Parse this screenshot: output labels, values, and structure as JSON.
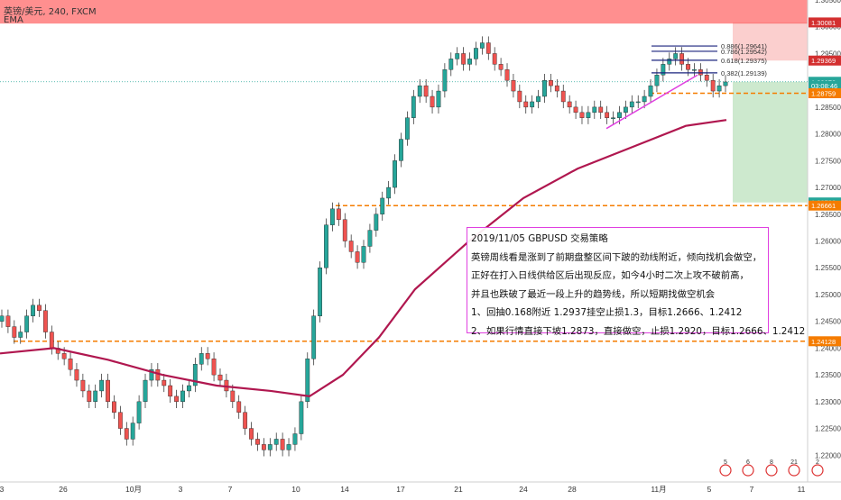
{
  "header": {
    "symbol_line": "英镑/美元, 240, FXCM",
    "indicator": "EMA"
  },
  "chart_data": {
    "type": "candlestick",
    "symbol": "英镑/美元",
    "timeframe": "240",
    "source": "FXCM",
    "ylim": [
      1.215,
      1.305
    ],
    "y_ticks": [
      "1.30500",
      "1.30000",
      "1.29500",
      "1.29000",
      "1.28500",
      "1.28000",
      "1.27500",
      "1.27000",
      "1.26500",
      "1.26000",
      "1.25500",
      "1.25000",
      "1.24500",
      "1.24000",
      "1.23500",
      "1.23000",
      "1.22500",
      "1.22000"
    ],
    "x_ticks": [
      "3",
      "26",
      "10月",
      "3",
      "7",
      "10",
      "14",
      "17",
      "21",
      "24",
      "28",
      "11月",
      "5",
      "7",
      "11"
    ],
    "price_tags": [
      {
        "value": 1.30081,
        "label": "1.30081",
        "color": "#d32f2f"
      },
      {
        "value": 1.29369,
        "label": "1.29369",
        "color": "#d32f2f"
      },
      {
        "value": 1.28973,
        "label": "1.28973",
        "color": "#26a69a"
      },
      {
        "value": 1.28902,
        "label": "03:08:46",
        "color": "#26a69a"
      },
      {
        "value": 1.28759,
        "label": "1.28759",
        "color": "#f57c00"
      },
      {
        "value": 1.2672,
        "label": "1.26720",
        "color": "#26a69a"
      },
      {
        "value": 1.26661,
        "label": "1.26661",
        "color": "#f57c00"
      },
      {
        "value": 1.24128,
        "label": "1.24128",
        "color": "#f57c00"
      }
    ],
    "fib_levels": [
      {
        "label": "0.886(1.29641)",
        "value": 1.29641
      },
      {
        "label": "0.786(1.29542)",
        "value": 1.29542
      },
      {
        "label": "0.618(1.29375)",
        "value": 1.29375
      },
      {
        "label": "0.382(1.29139)",
        "value": 1.29139
      }
    ],
    "horizontal_lines": [
      1.28759,
      1.26661,
      1.24128
    ],
    "ema_points": [
      [
        0,
        1.239
      ],
      [
        60,
        1.24
      ],
      [
        120,
        1.2378
      ],
      [
        180,
        1.235
      ],
      [
        240,
        1.233
      ],
      [
        300,
        1.232
      ],
      [
        343,
        1.231
      ],
      [
        380,
        1.235
      ],
      [
        420,
        1.242
      ],
      [
        460,
        1.251
      ],
      [
        520,
        1.26
      ],
      [
        580,
        1.268
      ],
      [
        640,
        1.2735
      ],
      [
        700,
        1.2775
      ],
      [
        760,
        1.2815
      ],
      [
        805,
        1.2826
      ]
    ],
    "candles_close": [
      1.246,
      1.244,
      1.242,
      1.243,
      1.246,
      1.248,
      1.247,
      1.243,
      1.24,
      1.239,
      1.238,
      1.236,
      1.234,
      1.232,
      1.23,
      1.232,
      1.234,
      1.23,
      1.228,
      1.225,
      1.223,
      1.226,
      1.23,
      1.234,
      1.236,
      1.234,
      1.233,
      1.231,
      1.23,
      1.232,
      1.233,
      1.237,
      1.239,
      1.238,
      1.235,
      1.234,
      1.232,
      1.23,
      1.228,
      1.225,
      1.223,
      1.222,
      1.221,
      1.222,
      1.223,
      1.221,
      1.222,
      1.224,
      1.23,
      1.238,
      1.246,
      1.255,
      1.263,
      1.266,
      1.264,
      1.26,
      1.258,
      1.256,
      1.259,
      1.262,
      1.265,
      1.268,
      1.27,
      1.275,
      1.279,
      1.283,
      1.287,
      1.289,
      1.287,
      1.285,
      1.288,
      1.292,
      1.294,
      1.295,
      1.293,
      1.294,
      1.296,
      1.297,
      1.295,
      1.293,
      1.292,
      1.29,
      1.288,
      1.286,
      1.285,
      1.286,
      1.287,
      1.29,
      1.289,
      1.288,
      1.286,
      1.285,
      1.284,
      1.283,
      1.284,
      1.285,
      1.284,
      1.283,
      1.283,
      1.284,
      1.285,
      1.286,
      1.286,
      1.287,
      1.289,
      1.291,
      1.293,
      1.294,
      1.295,
      1.293,
      1.292,
      1.292,
      1.291,
      1.29,
      1.288,
      1.289,
      1.2897
    ],
    "candles_x_range": [
      2,
      804
    ]
  },
  "plan_box": {
    "title": "2019/11/05  GBPUSD  交易策略",
    "lines": [
      "英镑周线看是涨到了前期盘整区间下跛的劲线附近，倾向找机会做空，",
      "正好在打入日线供给区后出现反应，如今4小时二次上攻不破前高，",
      "并且也跌破了最近一段上升的趋势线，所以短期找做空机会",
      "1、回抽0.168附近 1.2937挂空止损1.3，目标1.2666、1.2412",
      "2、如果行情直接下坡1.2873，直接做空，止损1.2920，目标1.2666、1.2412"
    ]
  },
  "colors": {
    "up": "#26a69a",
    "down": "#ef5350",
    "ema": "#b0174f",
    "level": "#f57c00",
    "trend": "#e040e0",
    "stop_zone": "#ef5350",
    "target_zone": "#4caf50"
  },
  "footer_badges": [
    "5",
    "6",
    "8",
    "21",
    "2"
  ]
}
